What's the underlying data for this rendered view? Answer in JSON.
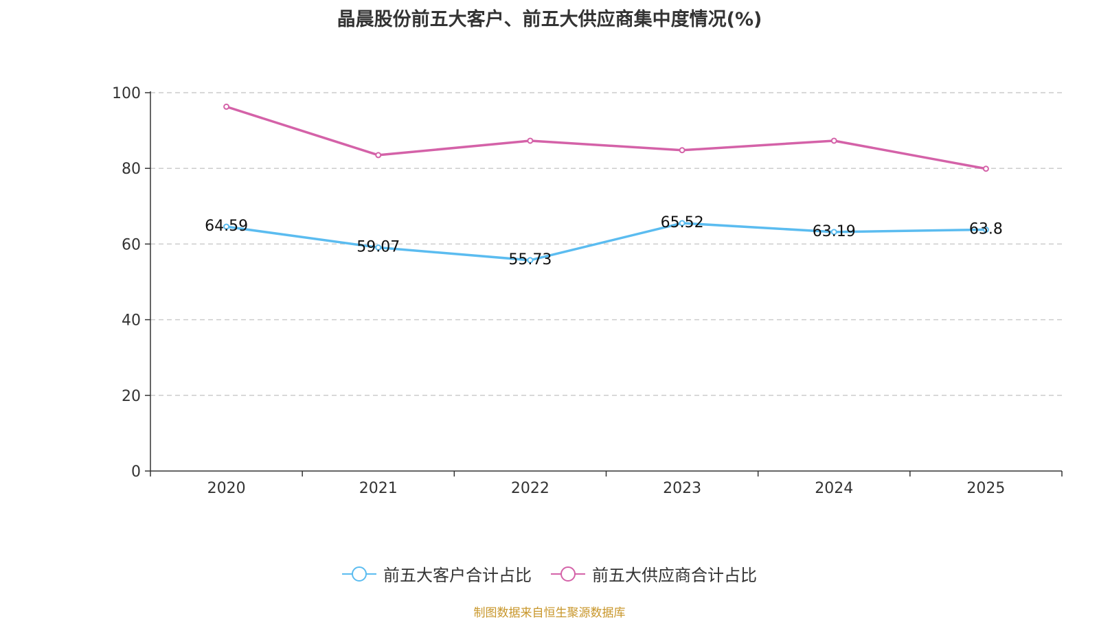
{
  "chart_data": {
    "type": "line",
    "title": "晶晨股份前五大客户、前五大供应商集中度情况(%)",
    "categories": [
      "2020",
      "2021",
      "2022",
      "2023",
      "2024",
      "2025"
    ],
    "ylim": [
      0,
      100
    ],
    "yticks": [
      0,
      20,
      40,
      60,
      80,
      100
    ],
    "grid": true,
    "xlabel": "",
    "ylabel": "",
    "legend_position": "bottom",
    "series": [
      {
        "name": "前五大客户合计占比",
        "color": "#5bbcf0",
        "values": [
          64.59,
          59.07,
          55.73,
          65.52,
          63.19,
          63.8
        ],
        "labels": [
          "64.59",
          "59.07",
          "55.73",
          "65.52",
          "63.19",
          "63.8"
        ],
        "show_labels": true
      },
      {
        "name": "前五大供应商合计占比",
        "color": "#d462a8",
        "values": [
          96.3,
          83.5,
          87.3,
          84.8,
          87.3,
          79.9
        ],
        "show_labels": false
      }
    ]
  },
  "source_note": "制图数据来自恒生聚源数据库"
}
